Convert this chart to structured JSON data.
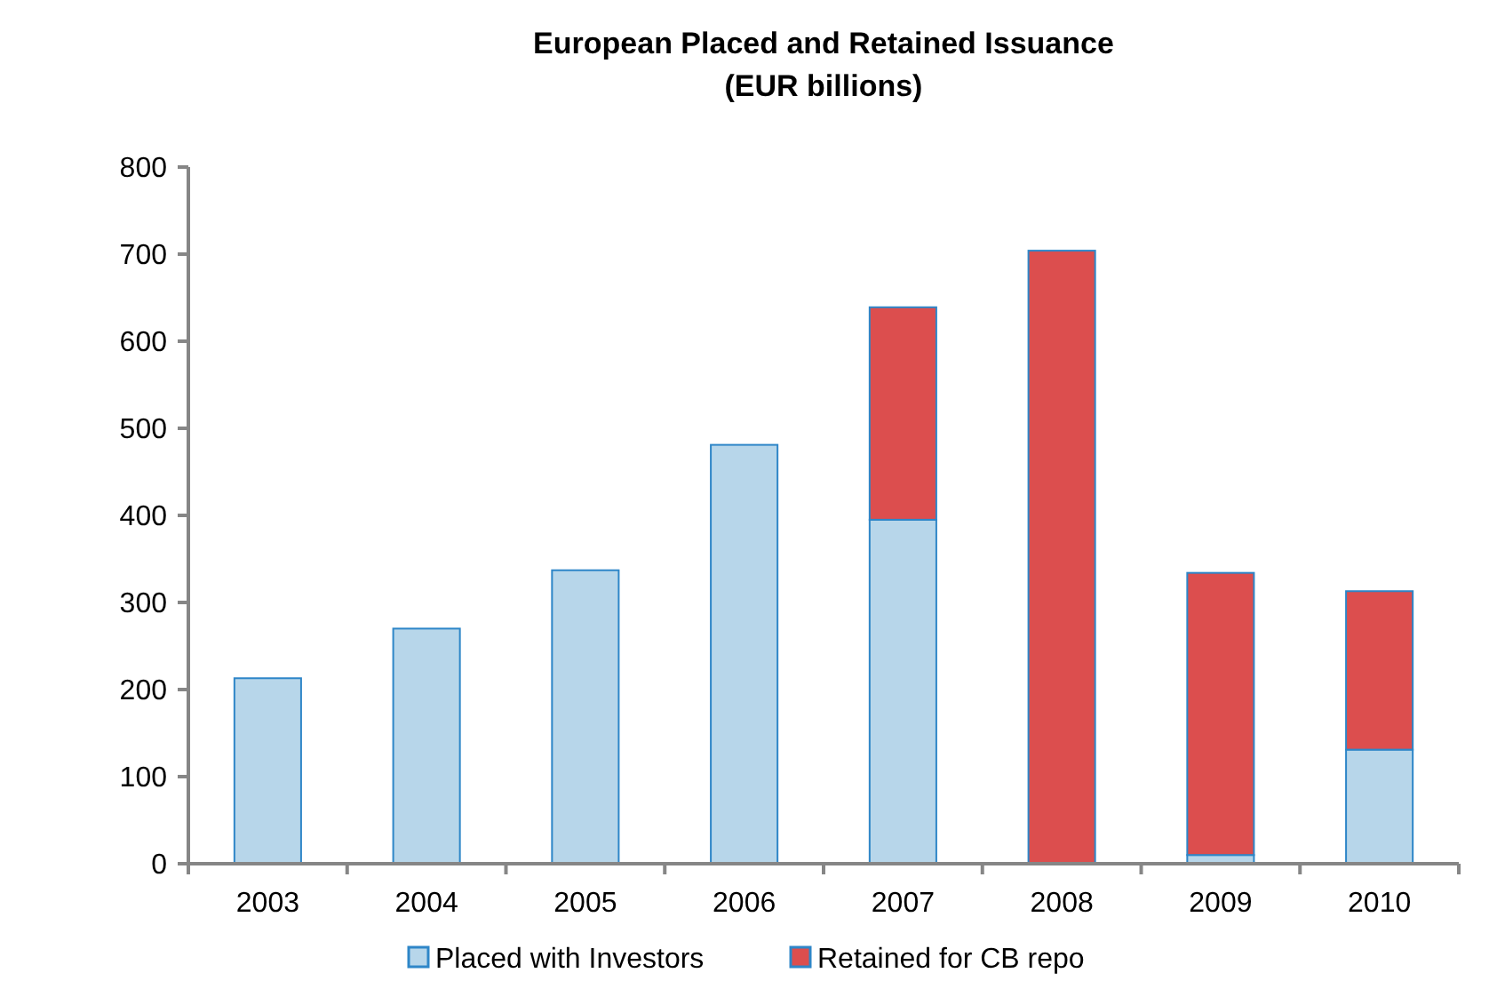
{
  "chart_data": {
    "type": "bar",
    "title": "European Placed and Retained Issuance\n(EUR billions)",
    "categories": [
      "2003",
      "2004",
      "2005",
      "2006",
      "2007",
      "2008",
      "2009",
      "2010"
    ],
    "stacked": true,
    "series": [
      {
        "name": "Placed with Investors",
        "color": "#b7d6ea",
        "values": [
          213,
          270,
          337,
          481,
          395,
          0,
          10,
          131
        ]
      },
      {
        "name": "Retained for CB repo",
        "color": "#dc4e4e",
        "values": [
          0,
          0,
          0,
          0,
          244,
          704,
          324,
          182
        ]
      }
    ],
    "ylim": [
      0,
      800
    ],
    "yticks": [
      0,
      100,
      200,
      300,
      400,
      500,
      600,
      700,
      800
    ],
    "grid": false,
    "legend": "bottom"
  }
}
